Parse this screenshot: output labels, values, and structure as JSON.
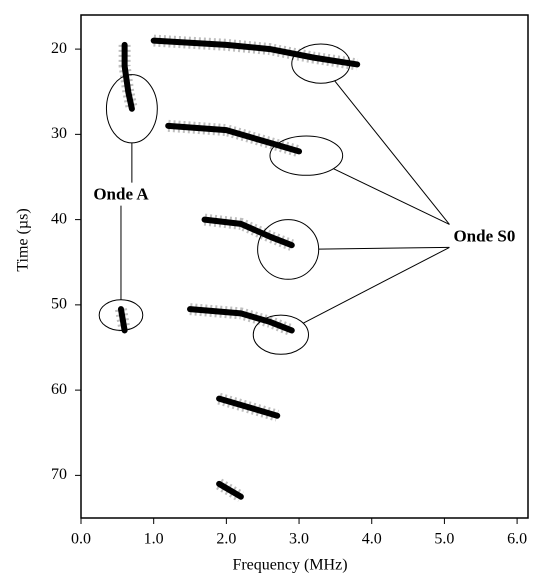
{
  "chart_data": {
    "type": "spectrogram",
    "xlabel": "Frequency (MHz)",
    "ylabel": "Time (µs)",
    "xlim": [
      0,
      6.15
    ],
    "ylim": [
      75,
      16
    ],
    "xticks": [
      {
        "value": 0,
        "label": "0.0"
      },
      {
        "value": 1,
        "label": "1.0"
      },
      {
        "value": 2,
        "label": "2.0"
      },
      {
        "value": 3,
        "label": "3.0"
      },
      {
        "value": 4,
        "label": "4.0"
      },
      {
        "value": 5,
        "label": "5.0"
      },
      {
        "value": 6,
        "label": "6.0"
      }
    ],
    "yticks": [
      20,
      30,
      40,
      50,
      60,
      70
    ],
    "color": "#000000",
    "ridges": [
      {
        "x": [
          1.0,
          2.0,
          2.6,
          3.2,
          3.8
        ],
        "y": [
          19,
          19.5,
          20,
          21,
          21.8
        ]
      },
      {
        "x": [
          0.6,
          0.6,
          0.65,
          0.7
        ],
        "y": [
          19.5,
          22,
          25,
          27
        ]
      },
      {
        "x": [
          1.2,
          2.0,
          2.6,
          3.0
        ],
        "y": [
          29,
          29.5,
          31,
          32
        ]
      },
      {
        "x": [
          1.7,
          2.2,
          2.6,
          2.9
        ],
        "y": [
          40,
          40.5,
          42,
          43
        ]
      },
      {
        "x": [
          1.5,
          2.2,
          2.6,
          2.9
        ],
        "y": [
          50.5,
          51,
          52,
          53
        ]
      },
      {
        "x": [
          0.55,
          0.6
        ],
        "y": [
          50.5,
          53
        ]
      },
      {
        "x": [
          1.9,
          2.3,
          2.7
        ],
        "y": [
          61,
          62,
          63
        ]
      },
      {
        "x": [
          1.9,
          2.2
        ],
        "y": [
          71,
          72.5
        ]
      }
    ],
    "annotations": [
      {
        "text": "Onde A",
        "x": 0.55,
        "y": 37.2,
        "circles": [
          {
            "x": 0.7,
            "y": 27,
            "rx": 0.35,
            "ry": 4
          },
          {
            "x": 0.55,
            "y": 51.2,
            "rx": 0.3,
            "ry": 1.8
          }
        ]
      },
      {
        "text": "Onde S0",
        "x": 5.55,
        "y": 42.1,
        "circles": [
          {
            "x": 3.3,
            "y": 21.7,
            "rx": 0.4,
            "ry": 2.3
          },
          {
            "x": 3.1,
            "y": 32.5,
            "rx": 0.5,
            "ry": 2.3
          },
          {
            "x": 2.85,
            "y": 43.5,
            "rx": 0.42,
            "ry": 3.5
          },
          {
            "x": 2.75,
            "y": 53.5,
            "rx": 0.38,
            "ry": 2.3
          }
        ]
      }
    ]
  }
}
